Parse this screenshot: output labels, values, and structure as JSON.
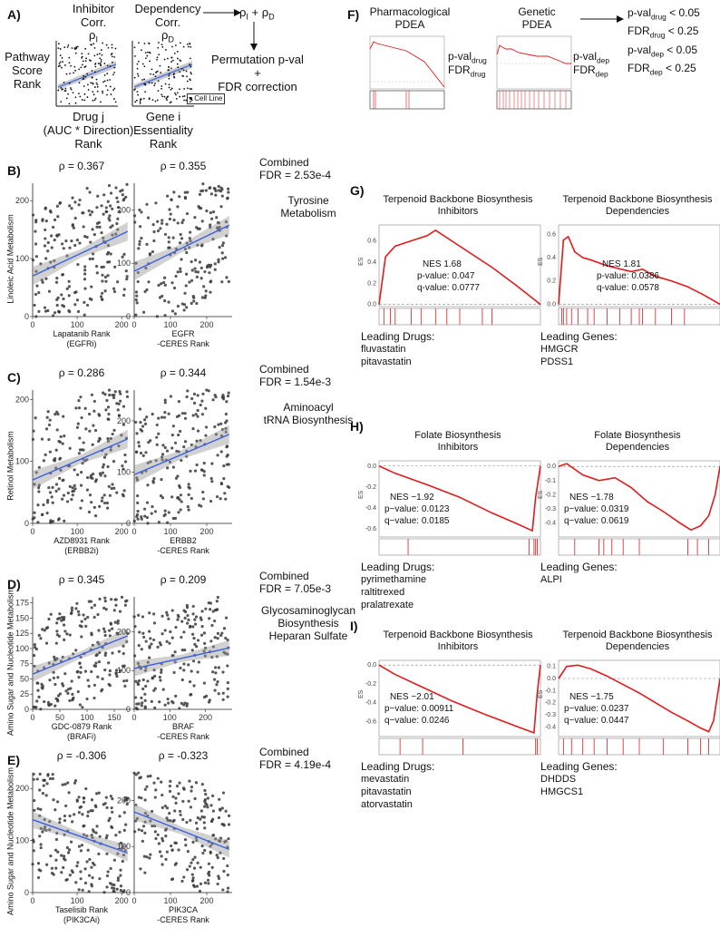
{
  "panel_a": {
    "letter": "A)",
    "inhibitor_header": "Inhibitor\nCorr.",
    "inhibitor_rho": "ρ",
    "inhibitor_rho_sub": "I",
    "dependency_header": "Dependency\nCorr.",
    "dependency_rho": "ρ",
    "dependency_rho_sub": "D",
    "pathway_label": "Pathway\nScore\nRank",
    "drug_axis": "Drug j\n(AUC * Direction)\nRank",
    "gene_axis": "Gene i\nEssentiality\nRank",
    "cell_line_legend": "Cell Line",
    "combo_rho": "ρ",
    "combo_sub1": "I",
    "combo_plus": " + ρ",
    "combo_sub2": "D",
    "permutation": "Permutation p-val\n+\nFDR correction"
  },
  "panel_f": {
    "letter": "F)",
    "pharm_title": "Pharmacological\nPDEA",
    "genetic_title": "Genetic\nPDEA",
    "pval_drug": "p-val",
    "sub_drug": "drug",
    "fdr_drug": "FDR",
    "pval_dep": "p-val",
    "sub_dep": "dep",
    "fdr_dep": "FDR",
    "criteria": [
      {
        "label": "p-val",
        "sub": "drug",
        "rest": " < 0.05"
      },
      {
        "label": "FDR",
        "sub": "drug",
        "rest": " < 0.25"
      },
      {
        "label": "p-val",
        "sub": "dep",
        "rest": " < 0.05"
      },
      {
        "label": "FDR",
        "sub": "dep",
        "rest": " < 0.25"
      }
    ]
  },
  "scatter_rows": [
    {
      "letter": "B)",
      "ylabel": "Linoleic Acid Metabolism",
      "combined": "Combined\nFDR = 2.53e-4",
      "pathway": "Tyrosine\nMetabolism",
      "left": {
        "rho": "ρ = 0.367",
        "xlabel": "Lapatanib Rank\n(EGFRi)",
        "xticks": [
          "0",
          "100",
          "200"
        ],
        "xmax": 220,
        "yticks": [
          "0",
          "100",
          "200"
        ],
        "ymax": 230,
        "slope": 0.36,
        "intercept": 70
      },
      "right": {
        "rho": "ρ = 0.355",
        "xlabel": "EGFR\n-CERES Rank",
        "xticks": [
          "0",
          "100",
          "200"
        ],
        "xmax": 270,
        "yticks": [
          "0",
          "100",
          "200"
        ],
        "ymax": 250,
        "slope": 0.33,
        "intercept": 85
      }
    },
    {
      "letter": "C)",
      "ylabel": "Retinol Metabolism",
      "combined": "Combined\nFDR = 1.54e-3",
      "pathway": "Aminoacyl\ntRNA Biosynthesis",
      "left": {
        "rho": "ρ = 0.286",
        "xlabel": "AZD8931 Rank\n(ERBB2i)",
        "xticks": [
          "0",
          "100",
          "200"
        ],
        "xmax": 220,
        "yticks": [
          "0",
          "100",
          "200"
        ],
        "ymax": 215,
        "slope": 0.31,
        "intercept": 70
      },
      "right": {
        "rho": "ρ = 0.344",
        "xlabel": "ERBB2\n-CERES Rank",
        "xticks": [
          "0",
          "100",
          "200"
        ],
        "xmax": 270,
        "yticks": [
          "0",
          "100",
          "200"
        ],
        "ymax": 260,
        "slope": 0.3,
        "intercept": 95
      }
    },
    {
      "letter": "D)",
      "ylabel": "Amino Sugar and Nucleotide Metabolism",
      "combined": "Combined\nFDR = 7.05e-3",
      "pathway": "Glycosaminoglycan\nBiosynthesis\nHeparan Sulfate",
      "left": {
        "rho": "ρ = 0.345",
        "xlabel": "GDC-0879 Rank\n(BRAFi)",
        "xticks": [
          "0",
          "50",
          "100",
          "150"
        ],
        "xmax": 180,
        "yticks": [
          "0",
          "25",
          "50",
          "75",
          "100",
          "125",
          "150",
          "175"
        ],
        "ymax": 185,
        "slope": 0.36,
        "intercept": 58
      },
      "right": {
        "rho": "ρ = 0.209",
        "xlabel": "BRAF\n-CERES Rank",
        "xticks": [
          "0",
          "100",
          "200"
        ],
        "xmax": 275,
        "yticks": [
          "0",
          "100",
          "200"
        ],
        "ymax": 290,
        "slope": 0.2,
        "intercept": 105
      }
    },
    {
      "letter": "E)",
      "ylabel": "Amino Sugar and Nucleotide Metabolism",
      "combined": "Combined\nFDR = 4.19e-4",
      "pathway": "",
      "left": {
        "rho": "ρ = -0.306",
        "xlabel": "Taselisib Rank\n(PIK3CAi)",
        "xticks": [
          "0",
          "100",
          "200"
        ],
        "xmax": 220,
        "yticks": [
          "0",
          "100",
          "200"
        ],
        "ymax": 230,
        "slope": -0.3,
        "intercept": 140
      },
      "right": {
        "rho": "ρ = -0.323",
        "xlabel": "PIK3CA\n-CERES Rank",
        "xticks": [
          "0",
          "100",
          "200"
        ],
        "xmax": 270,
        "yticks": [
          "0",
          "100",
          "200"
        ],
        "ymax": 260,
        "slope": -0.31,
        "intercept": 175
      }
    }
  ],
  "gsea_panels": [
    {
      "letter": "G)",
      "left": {
        "title": "Terpenoid Backbone Biosynthesis\nInhibitors",
        "nes": "NES 1.68",
        "pval": "p-value: 0.047",
        "qval": "q-value: 0.0777",
        "leading_label": "Leading Drugs:",
        "leading": [
          "fluvastatin",
          "pitavastatin"
        ],
        "yticks": [
          "0.0",
          "0.2",
          "0.4",
          "0.6"
        ],
        "ymin": -0.02,
        "ymax": 0.75,
        "curve": [
          [
            0,
            0
          ],
          [
            0.04,
            0.45
          ],
          [
            0.1,
            0.55
          ],
          [
            0.2,
            0.6
          ],
          [
            0.3,
            0.65
          ],
          [
            0.35,
            0.7
          ],
          [
            0.5,
            0.55
          ],
          [
            0.7,
            0.35
          ],
          [
            0.85,
            0.18
          ],
          [
            1,
            0
          ]
        ],
        "hits": [
          0.03,
          0.07,
          0.1,
          0.2,
          0.26,
          0.35,
          0.42,
          0.5,
          0.64,
          0.7
        ]
      },
      "right": {
        "title": "Terpenoid Backbone Biosynthesis\nDependencies",
        "nes": "NES 1.81",
        "pval": "p-value: 0.0386",
        "qval": "q-value: 0.0578",
        "leading_label": "Leading Genes:",
        "leading": [
          "HMGCR",
          "PDSS1"
        ],
        "yticks": [
          "0.0",
          "0.2",
          "0.4",
          "0.6"
        ],
        "ymin": -0.02,
        "ymax": 0.68,
        "curve": [
          [
            0,
            0
          ],
          [
            0.03,
            0.55
          ],
          [
            0.06,
            0.58
          ],
          [
            0.1,
            0.45
          ],
          [
            0.15,
            0.4
          ],
          [
            0.2,
            0.38
          ],
          [
            0.3,
            0.33
          ],
          [
            0.45,
            0.28
          ],
          [
            0.52,
            0.3
          ],
          [
            0.6,
            0.24
          ],
          [
            0.7,
            0.2
          ],
          [
            0.8,
            0.15
          ],
          [
            0.9,
            0.08
          ],
          [
            1,
            0
          ]
        ],
        "hits": [
          0.02,
          0.03,
          0.05,
          0.08,
          0.12,
          0.18,
          0.22,
          0.3,
          0.38,
          0.45,
          0.5,
          0.52,
          0.6,
          0.7,
          0.78
        ]
      }
    },
    {
      "letter": "H)",
      "left": {
        "title": "Folate Biosynthesis\nInhibitors",
        "nes": "NES −1.92",
        "pval": "p−value: 0.0123",
        "qval": "q−value: 0.0185",
        "leading_label": "Leading Drugs:",
        "leading": [
          "pyrimethamine",
          "raltitrexed",
          "pralatrexate"
        ],
        "yticks": [
          "0.0",
          "-0.2",
          "-0.4",
          "-0.6"
        ],
        "ymin": -0.68,
        "ymax": 0.05,
        "curve": [
          [
            0,
            0
          ],
          [
            0.1,
            -0.07
          ],
          [
            0.3,
            -0.18
          ],
          [
            0.5,
            -0.3
          ],
          [
            0.7,
            -0.45
          ],
          [
            0.85,
            -0.55
          ],
          [
            0.95,
            -0.62
          ],
          [
            0.97,
            -0.3
          ],
          [
            1,
            0
          ]
        ],
        "hits": [
          0.18,
          0.93,
          0.96,
          0.97,
          0.98
        ]
      },
      "right": {
        "title": "Folate Biosynthesis\nDependencies",
        "nes": "NES −1.78",
        "pval": "p−value: 0.0319",
        "qval": "q−value: 0.0619",
        "leading_label": "Leading Genes:",
        "leading": [
          "ALPI"
        ],
        "yticks": [
          "0.0",
          "-0.1",
          "-0.2",
          "-0.3",
          "-0.4"
        ],
        "ymin": -0.5,
        "ymax": 0.04,
        "curve": [
          [
            0,
            0
          ],
          [
            0.05,
            0.02
          ],
          [
            0.15,
            -0.06
          ],
          [
            0.25,
            -0.1
          ],
          [
            0.35,
            -0.08
          ],
          [
            0.45,
            -0.15
          ],
          [
            0.55,
            -0.25
          ],
          [
            0.65,
            -0.32
          ],
          [
            0.75,
            -0.4
          ],
          [
            0.82,
            -0.45
          ],
          [
            0.88,
            -0.42
          ],
          [
            0.93,
            -0.35
          ],
          [
            0.97,
            -0.2
          ],
          [
            1,
            0
          ]
        ],
        "hits": [
          0.1,
          0.25,
          0.28,
          0.33,
          0.4,
          0.5,
          0.8,
          0.86,
          0.93
        ]
      }
    },
    {
      "letter": "I)",
      "left": {
        "title": "Terpenoid Backbone Biosynthesis\nInhibitors",
        "nes": "NES −2.01",
        "pval": "p−value: 0.00911",
        "qval": "q−value: 0.0246",
        "leading_label": "Leading Drugs:",
        "leading": [
          "mevastatin",
          "pitavastatin",
          "atorvastatin"
        ],
        "yticks": [
          "0.0",
          "-0.2",
          "-0.4",
          "-0.6"
        ],
        "ymin": -0.76,
        "ymax": 0.05,
        "curve": [
          [
            0,
            0
          ],
          [
            0.1,
            -0.1
          ],
          [
            0.25,
            -0.22
          ],
          [
            0.45,
            -0.38
          ],
          [
            0.65,
            -0.52
          ],
          [
            0.85,
            -0.65
          ],
          [
            0.96,
            -0.72
          ],
          [
            0.98,
            -0.3
          ],
          [
            1,
            0
          ]
        ],
        "hits": [
          0.13,
          0.27,
          0.52,
          0.97,
          0.98
        ]
      },
      "right": {
        "title": "Terpenoid Backbone Biosynthesis\nDependencies",
        "nes": "NES −1.75",
        "pval": "p−value: 0.0237",
        "qval": "q−value: 0.0447",
        "leading_label": "Leading Genes:",
        "leading": [
          "DHDDS",
          "HMGCS1"
        ],
        "yticks": [
          "0.1",
          "0.0",
          "-0.1",
          "-0.2",
          "-0.3",
          "-0.4"
        ],
        "ymin": -0.48,
        "ymax": 0.15,
        "curve": [
          [
            0,
            0
          ],
          [
            0.05,
            0.1
          ],
          [
            0.12,
            0.11
          ],
          [
            0.2,
            0.08
          ],
          [
            0.3,
            0.02
          ],
          [
            0.4,
            -0.05
          ],
          [
            0.5,
            -0.12
          ],
          [
            0.6,
            -0.2
          ],
          [
            0.7,
            -0.28
          ],
          [
            0.8,
            -0.35
          ],
          [
            0.88,
            -0.41
          ],
          [
            0.93,
            -0.44
          ],
          [
            0.96,
            -0.35
          ],
          [
            1,
            0
          ]
        ],
        "hits": [
          0.03,
          0.08,
          0.15,
          0.22,
          0.3,
          0.4,
          0.5,
          0.65,
          0.8,
          0.88,
          0.93
        ]
      }
    }
  ]
}
